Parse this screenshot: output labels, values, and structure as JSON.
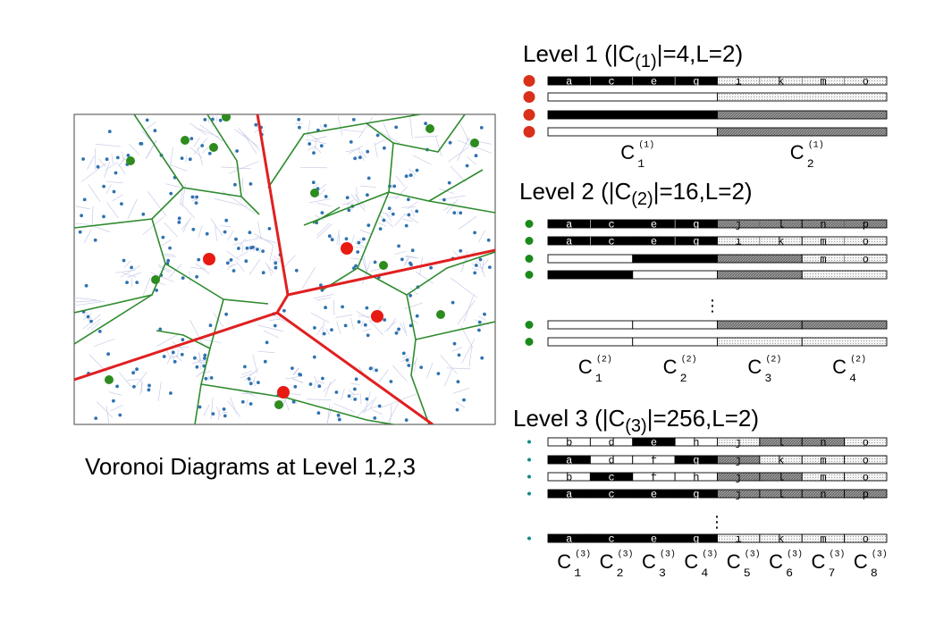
{
  "caption": "Voronoi Diagrams at Level 1,2,3",
  "colors": {
    "red_site": "#e81a14",
    "green_site": "#2e8b1e",
    "blue_point": "#2f72b0",
    "light_cell": "#c8cce8",
    "green_edge": "#2e8b2e",
    "red_edge": "#e02020",
    "black_fill": "#000000",
    "dark_hatch": "#8a8a8a",
    "light_dots": "#e4e4e4",
    "level_dot_red": "#d9301a",
    "level_dot_green": "#1a8a1a",
    "level_dot_teal": "#188a88"
  },
  "legend_note": "Segment fills: black, white, dark hatched, light dotted",
  "level1": {
    "title": {
      "pre": "Level 1 (|C",
      "sub": "(1)",
      "post": "|=4,L=2)"
    },
    "rows": [
      {
        "letters": [
          "a",
          "c",
          "e",
          "g",
          "i",
          "k",
          "m",
          "o"
        ],
        "fills": [
          "B",
          "L"
        ]
      },
      {
        "letters": [
          "",
          "",
          "",
          "",
          "",
          "",
          "",
          ""
        ],
        "fills": [
          "W",
          "L"
        ]
      },
      {
        "letters": [
          "",
          "",
          "",
          "",
          "",
          "",
          "",
          ""
        ],
        "fills": [
          "B",
          "H"
        ]
      },
      {
        "letters": [
          "",
          "",
          "",
          "",
          "",
          "",
          "",
          ""
        ],
        "fills": [
          "W",
          "H"
        ]
      }
    ],
    "labels": [
      {
        "base": "C",
        "sup": "(1)",
        "sub": "1"
      },
      {
        "base": "C",
        "sup": "(1)",
        "sub": "2"
      }
    ]
  },
  "level2": {
    "title": {
      "pre": "Level 2 (|C",
      "sub": "(2)",
      "post": "|=16,L=2)"
    },
    "rows": [
      {
        "letters": [
          "a",
          "c",
          "e",
          "g",
          "j",
          "l",
          "n",
          "p"
        ],
        "fills": [
          "B",
          "B",
          "H",
          "H"
        ]
      },
      {
        "letters": [
          "a",
          "c",
          "e",
          "g",
          "i",
          "k",
          "m",
          "o"
        ],
        "fills": [
          "B",
          "B",
          "L",
          "L"
        ]
      },
      {
        "letters": [
          "",
          "",
          "",
          "",
          "",
          "",
          "m",
          "o"
        ],
        "fills": [
          "W",
          "B",
          "H",
          "L"
        ]
      },
      {
        "letters": [
          "",
          "",
          "",
          "",
          "",
          "",
          "",
          ""
        ],
        "fills": [
          "B",
          "W",
          "H",
          "L"
        ]
      }
    ],
    "ellipsis": "⋮",
    "tail_rows": [
      {
        "letters": [
          "",
          "",
          "",
          "",
          "",
          "",
          "",
          ""
        ],
        "fills": [
          "W",
          "W",
          "H",
          "H"
        ]
      },
      {
        "letters": [
          "",
          "",
          "",
          "",
          "",
          "",
          "",
          ""
        ],
        "fills": [
          "W",
          "W",
          "L",
          "L"
        ]
      }
    ],
    "labels": [
      {
        "base": "C",
        "sup": "(2)",
        "sub": "1"
      },
      {
        "base": "C",
        "sup": "(2)",
        "sub": "2"
      },
      {
        "base": "C",
        "sup": "(2)",
        "sub": "3"
      },
      {
        "base": "C",
        "sup": "(2)",
        "sub": "4"
      }
    ]
  },
  "level3": {
    "title": {
      "pre": "Level 3 (|C",
      "sub": "(3)",
      "post": "|=256,L=2)"
    },
    "rows": [
      {
        "letters": [
          "b",
          "d",
          "e",
          "h",
          "j",
          "l",
          "n",
          "o"
        ],
        "fills": [
          "W",
          "W",
          "B",
          "W",
          "L",
          "H",
          "H",
          "L"
        ]
      },
      {
        "letters": [
          "a",
          "d",
          "f",
          "g",
          "j",
          "k",
          "m",
          "o"
        ],
        "fills": [
          "B",
          "W",
          "W",
          "B",
          "H",
          "L",
          "L",
          "L"
        ]
      },
      {
        "letters": [
          "b",
          "c",
          "f",
          "h",
          "j",
          "l",
          "m",
          "o"
        ],
        "fills": [
          "W",
          "B",
          "W",
          "W",
          "H",
          "H",
          "L",
          "L"
        ]
      },
      {
        "letters": [
          "a",
          "c",
          "e",
          "g",
          "j",
          "l",
          "n",
          "p"
        ],
        "fills": [
          "B",
          "B",
          "B",
          "B",
          "H",
          "H",
          "H",
          "H"
        ]
      }
    ],
    "ellipsis": "⋮",
    "tail_rows": [
      {
        "letters": [
          "a",
          "c",
          "e",
          "g",
          "i",
          "k",
          "m",
          "o"
        ],
        "fills": [
          "B",
          "B",
          "B",
          "B",
          "L",
          "L",
          "L",
          "L"
        ]
      }
    ],
    "labels": [
      {
        "base": "C",
        "sup": "(3)",
        "sub": "1"
      },
      {
        "base": "C",
        "sup": "(3)",
        "sub": "2"
      },
      {
        "base": "C",
        "sup": "(3)",
        "sub": "3"
      },
      {
        "base": "C",
        "sup": "(3)",
        "sub": "4"
      },
      {
        "base": "C",
        "sup": "(3)",
        "sub": "5"
      },
      {
        "base": "C",
        "sup": "(3)",
        "sub": "6"
      },
      {
        "base": "C",
        "sup": "(3)",
        "sub": "7"
      },
      {
        "base": "C",
        "sup": "(3)",
        "sub": "8"
      }
    ]
  }
}
